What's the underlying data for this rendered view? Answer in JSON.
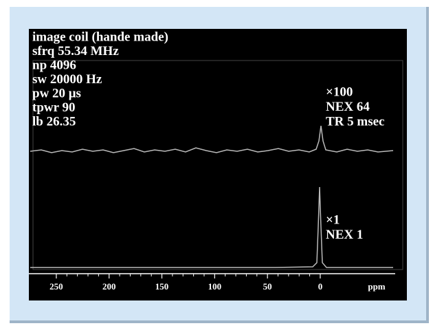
{
  "chart_data": {
    "type": "spectrum",
    "info_lines": [
      "image coil (hande made)",
      "sfrq 55.34 MHz",
      "np 4096",
      "sw 20000 Hz",
      "pw 20 μs",
      "tpwr 90",
      "lb 26.35"
    ],
    "upper_annotation": [
      "×100",
      "NEX 64",
      "TR 5 msec"
    ],
    "lower_annotation": [
      "×1",
      "NEX 1"
    ],
    "xlabel": "ppm",
    "xlim": [
      276,
      -71
    ],
    "xticks": [
      250,
      200,
      150,
      100,
      50,
      0
    ]
  }
}
